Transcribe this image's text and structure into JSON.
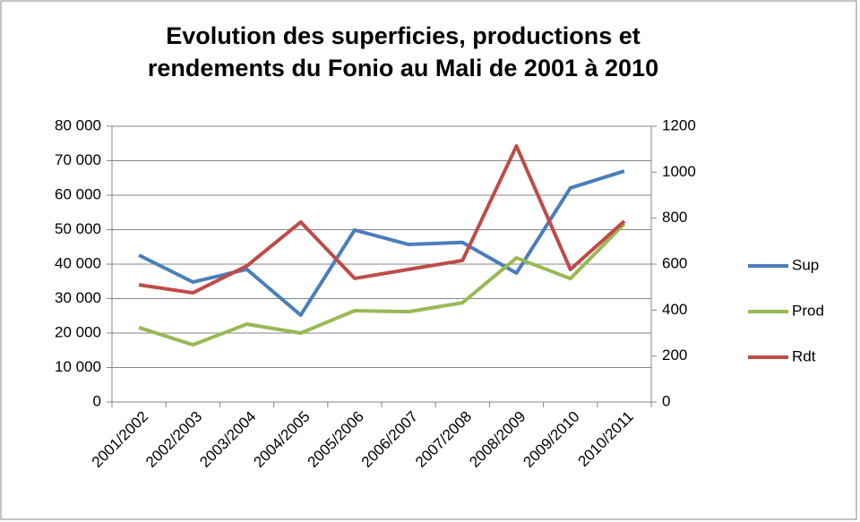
{
  "chart_data": {
    "type": "line",
    "title": [
      "Evolution des superficies, productions et",
      "rendements du Fonio au Mali de 2001 à 2010"
    ],
    "categories": [
      "2001/2002",
      "2002/2003",
      "2003/2004",
      "2004/2005",
      "2005/2006",
      "2006/2007",
      "2007/2008",
      "2008/2009",
      "2009/2010",
      "2010/2011"
    ],
    "series": [
      {
        "name": "Sup",
        "color": "#4a7ebb",
        "values": [
          42600,
          34800,
          38500,
          25200,
          49900,
          45700,
          46300,
          37400,
          62100,
          67000
        ]
      },
      {
        "name": "Prod",
        "color": "#98b954",
        "values": [
          21600,
          16600,
          22600,
          20000,
          26500,
          26200,
          28800,
          41800,
          35800,
          51700
        ]
      },
      {
        "name": "Rdt",
        "color": "#be4b48",
        "axis": "y2",
        "values": [
          510,
          475,
          592,
          783,
          538,
          577,
          616,
          1114,
          577,
          787
        ]
      }
    ],
    "ylim": [
      0,
      80000
    ],
    "yticks": [
      0,
      {
        "value": 10000,
        "label": "10 000"
      },
      {
        "value": 20000,
        "label": "20 000"
      },
      {
        "value": 30000,
        "label": "30 000"
      },
      {
        "value": 40000,
        "label": "40 000"
      },
      {
        "value": 50000,
        "label": "50 000"
      },
      {
        "value": 60000,
        "label": "60 000"
      },
      {
        "value": 70000,
        "label": "70 000"
      },
      {
        "value": 80000,
        "label": "80 000"
      }
    ],
    "y2lim": [
      0,
      1200
    ],
    "y2ticks": [
      0,
      200,
      400,
      600,
      800,
      1000,
      1200
    ],
    "grid": true,
    "legend": "right"
  }
}
